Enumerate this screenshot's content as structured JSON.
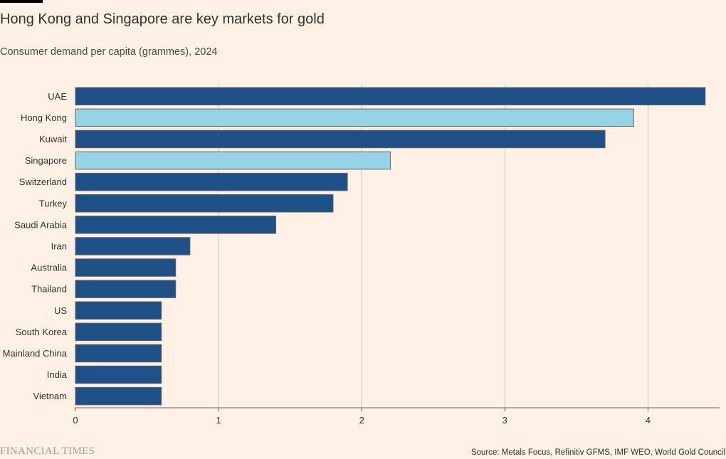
{
  "header": {
    "title": "Hong Kong and Singapore are key markets for gold",
    "subtitle": "Consumer demand per capita (grammes), 2024"
  },
  "footer": {
    "logo_text": "FINANCIAL TIMES",
    "source": "Source: Metals Focus, Refinitiv GFMS, IMF WEO, World Gold Council"
  },
  "colors": {
    "background": "#FFF1E5",
    "bar_default": "#1F5189",
    "bar_highlight": "#96D3E6",
    "bar_stroke": "#66605C",
    "gridline": "#CFC6BD",
    "axis": "#66605C",
    "text": "#33302E"
  },
  "chart_data": {
    "type": "bar",
    "orientation": "horizontal",
    "categories": [
      "UAE",
      "Hong Kong",
      "Kuwait",
      "Singapore",
      "Switzerland",
      "Turkey",
      "Saudi Arabia",
      "Iran",
      "Australia",
      "Thailand",
      "US",
      "South Korea",
      "Mainland China",
      "India",
      "Vietnam"
    ],
    "values": [
      4.4,
      3.9,
      3.7,
      2.2,
      1.9,
      1.8,
      1.4,
      0.8,
      0.7,
      0.7,
      0.6,
      0.6,
      0.6,
      0.6,
      0.6
    ],
    "highlighted": [
      "Hong Kong",
      "Singapore"
    ],
    "xlim": [
      0,
      4.5
    ],
    "xticks": [
      0,
      1,
      2,
      3,
      4
    ],
    "xtick_labels": [
      "0",
      "1",
      "2",
      "3",
      "4"
    ],
    "grid": true,
    "legend": "none"
  }
}
